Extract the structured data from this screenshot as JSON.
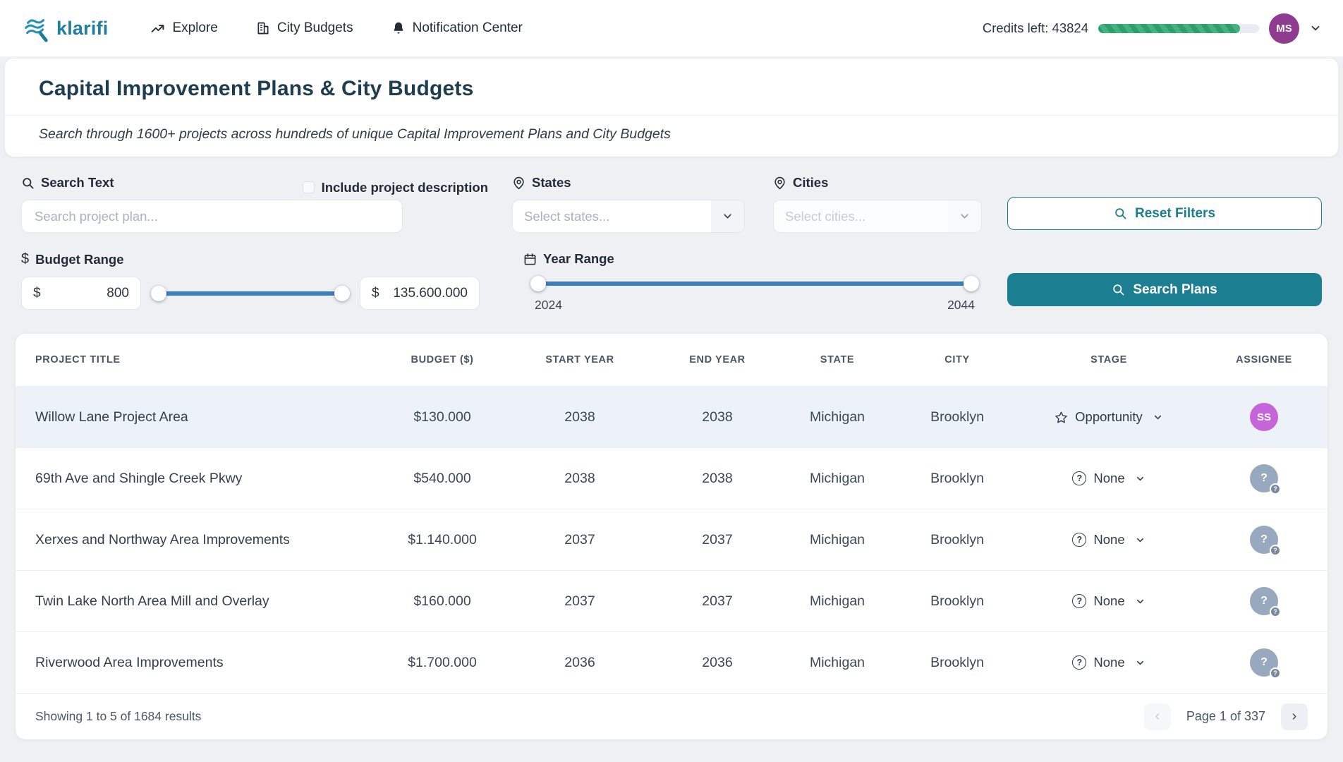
{
  "brand": {
    "name": "klarifi"
  },
  "navbar": {
    "links": [
      {
        "label": "Explore"
      },
      {
        "label": "City Budgets"
      },
      {
        "label": "Notification Center"
      }
    ],
    "credits_label": "Credits left: 43824",
    "credits_percent": 88,
    "user_initials": "MS"
  },
  "header": {
    "title": "Capital Improvement Plans & City Budgets",
    "subtitle": "Search through 1600+ projects across hundreds of unique Capital Improvement Plans and City Budgets"
  },
  "filters": {
    "search": {
      "label": "Search Text",
      "placeholder": "Search project plan...",
      "include_checkbox_label": "Include project description",
      "include_checked": false
    },
    "states": {
      "label": "States",
      "placeholder": "Select states..."
    },
    "cities": {
      "label": "Cities",
      "placeholder": "Select cities..."
    },
    "reset_button_label": "Reset Filters",
    "budget": {
      "label": "Budget Range",
      "currency": "$",
      "min": "800",
      "max": "135.600.000"
    },
    "year": {
      "label": "Year Range",
      "min": "2024",
      "max": "2044"
    },
    "search_button_label": "Search Plans"
  },
  "table": {
    "columns": [
      "PROJECT TITLE",
      "BUDGET ($)",
      "START YEAR",
      "END YEAR",
      "STATE",
      "CITY",
      "STAGE",
      "ASSIGNEE"
    ],
    "rows": [
      {
        "title": "Willow Lane Project Area",
        "budget": "$130.000",
        "start_year": "2038",
        "end_year": "2038",
        "state": "Michigan",
        "city": "Brooklyn",
        "stage": "Opportunity",
        "stage_icon": "star-icon",
        "assignee": "SS",
        "assignee_type": "user",
        "highlighted": true
      },
      {
        "title": "69th Ave and Shingle Creek Pkwy",
        "budget": "$540.000",
        "start_year": "2038",
        "end_year": "2038",
        "state": "Michigan",
        "city": "Brooklyn",
        "stage": "None",
        "stage_icon": "help-icon",
        "assignee": "?",
        "assignee_type": "unassigned",
        "highlighted": false
      },
      {
        "title": "Xerxes and Northway Area Improvements",
        "budget": "$1.140.000",
        "start_year": "2037",
        "end_year": "2037",
        "state": "Michigan",
        "city": "Brooklyn",
        "stage": "None",
        "stage_icon": "help-icon",
        "assignee": "?",
        "assignee_type": "unassigned",
        "highlighted": false
      },
      {
        "title": "Twin Lake North Area Mill and Overlay",
        "budget": "$160.000",
        "start_year": "2037",
        "end_year": "2037",
        "state": "Michigan",
        "city": "Brooklyn",
        "stage": "None",
        "stage_icon": "help-icon",
        "assignee": "?",
        "assignee_type": "unassigned",
        "highlighted": false
      },
      {
        "title": "Riverwood Area Improvements",
        "budget": "$1.700.000",
        "start_year": "2036",
        "end_year": "2036",
        "state": "Michigan",
        "city": "Brooklyn",
        "stage": "None",
        "stage_icon": "help-icon",
        "assignee": "?",
        "assignee_type": "unassigned",
        "highlighted": false
      }
    ]
  },
  "footer": {
    "summary": "Showing 1 to 5 of 1684 results",
    "page_label": "Page 1 of 337"
  },
  "colors": {
    "accent_teal": "#1c7e91",
    "slider_blue": "#3d7ec0",
    "progress_green": "#35a474",
    "user_avatar_purple": "#8f3b90",
    "assignee_purple": "#c565d9",
    "row_highlight": "#ecf2f8",
    "title_dark": "#1e3d50"
  }
}
